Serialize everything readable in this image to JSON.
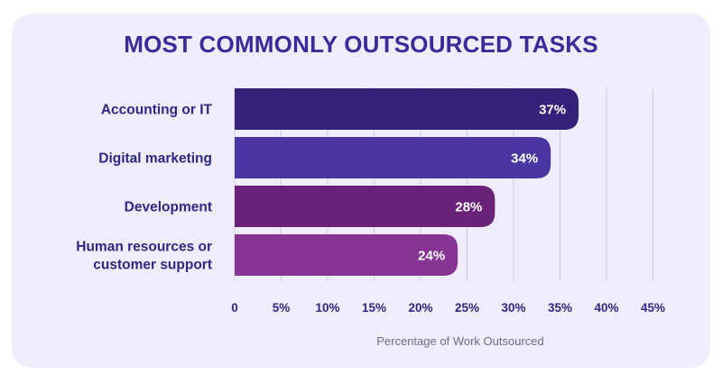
{
  "chart_data": {
    "type": "bar",
    "orientation": "horizontal",
    "title": "MOST COMMONLY OUTSOURCED TASKS",
    "xlabel": "Percentage of Work Outsourced",
    "ylabel": "",
    "categories": [
      [
        "Accounting or IT"
      ],
      [
        "Digital marketing"
      ],
      [
        "Development"
      ],
      [
        "Human resources or",
        "customer support"
      ]
    ],
    "values": [
      37,
      34,
      28,
      24
    ],
    "value_labels": [
      "37%",
      "34%",
      "28%",
      "24%"
    ],
    "bar_colors": [
      "#34217a",
      "#4a36a0",
      "#692278",
      "#863592"
    ],
    "xlim": [
      0,
      45
    ],
    "xticks": [
      0,
      5,
      10,
      15,
      20,
      25,
      30,
      35,
      40,
      45
    ],
    "xtick_labels": [
      "0",
      "5%",
      "10%",
      "15%",
      "20%",
      "25%",
      "30%",
      "35%",
      "40%",
      "45%"
    ],
    "grid": true
  }
}
